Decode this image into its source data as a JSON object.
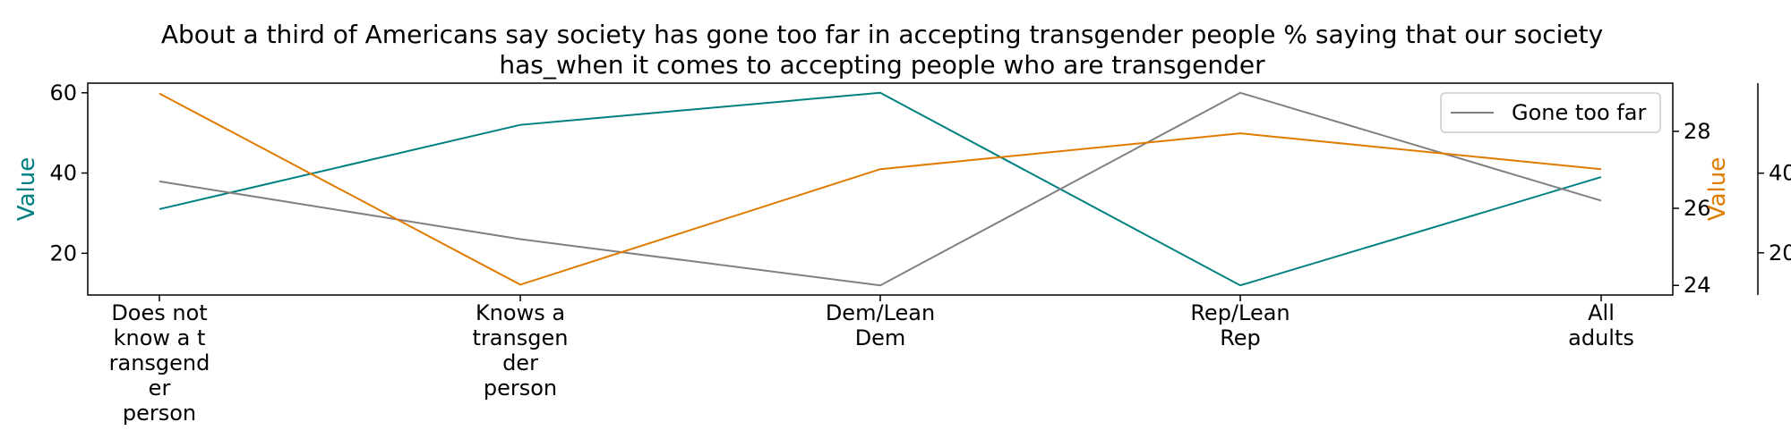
{
  "chart_data": {
    "type": "line",
    "title": "About a third of Americans say society has gone too far in accepting transgender people % saying that our society has_when it comes to accepting people who are transgender",
    "title_lines": [
      "About a third of Americans say society has gone too far in accepting transgender people % saying that our society",
      "has_when it comes to accepting people who are transgender"
    ],
    "categories": [
      "Does not know a transgender person",
      "Knows a transgender person",
      "Dem/Lean Dem",
      "Rep/Lean Rep",
      "All adults"
    ],
    "category_label_lines": [
      [
        "Does not",
        "know a t",
        "ransgend",
        "er",
        "person"
      ],
      [
        "Knows a",
        "transgen",
        "der",
        "person"
      ],
      [
        "Dem/Lean",
        "Dem"
      ],
      [
        "Rep/Lean",
        "Rep"
      ],
      [
        "All",
        "adults"
      ]
    ],
    "axes": [
      {
        "id": "left",
        "label": "Value",
        "color": "#008080",
        "ylim": [
          9.6,
          62.4
        ],
        "ticks": [
          20,
          40,
          60
        ]
      },
      {
        "id": "right1",
        "label": "",
        "color": "#000000",
        "ylim": [
          23.75,
          29.25
        ],
        "ticks": [
          24,
          26,
          28
        ]
      },
      {
        "id": "right2",
        "label": "Value",
        "color": "#e07b00",
        "ylim": [
          9.4,
          62.6
        ],
        "ticks": [
          20,
          40
        ]
      }
    ],
    "series": [
      {
        "axis": "left",
        "color": "#008080",
        "values": [
          31,
          52,
          60,
          12,
          39
        ]
      },
      {
        "name": "Gone too far",
        "axis": "right1",
        "color": "#808080",
        "values": [
          26.7,
          25.2,
          24.0,
          29.0,
          26.2
        ]
      },
      {
        "axis": "right2",
        "color": "#e07b00",
        "values": [
          60,
          12,
          41,
          50,
          41
        ]
      }
    ],
    "legend": {
      "position": "top-right",
      "entries": [
        "Gone too far"
      ]
    },
    "grid": false
  }
}
